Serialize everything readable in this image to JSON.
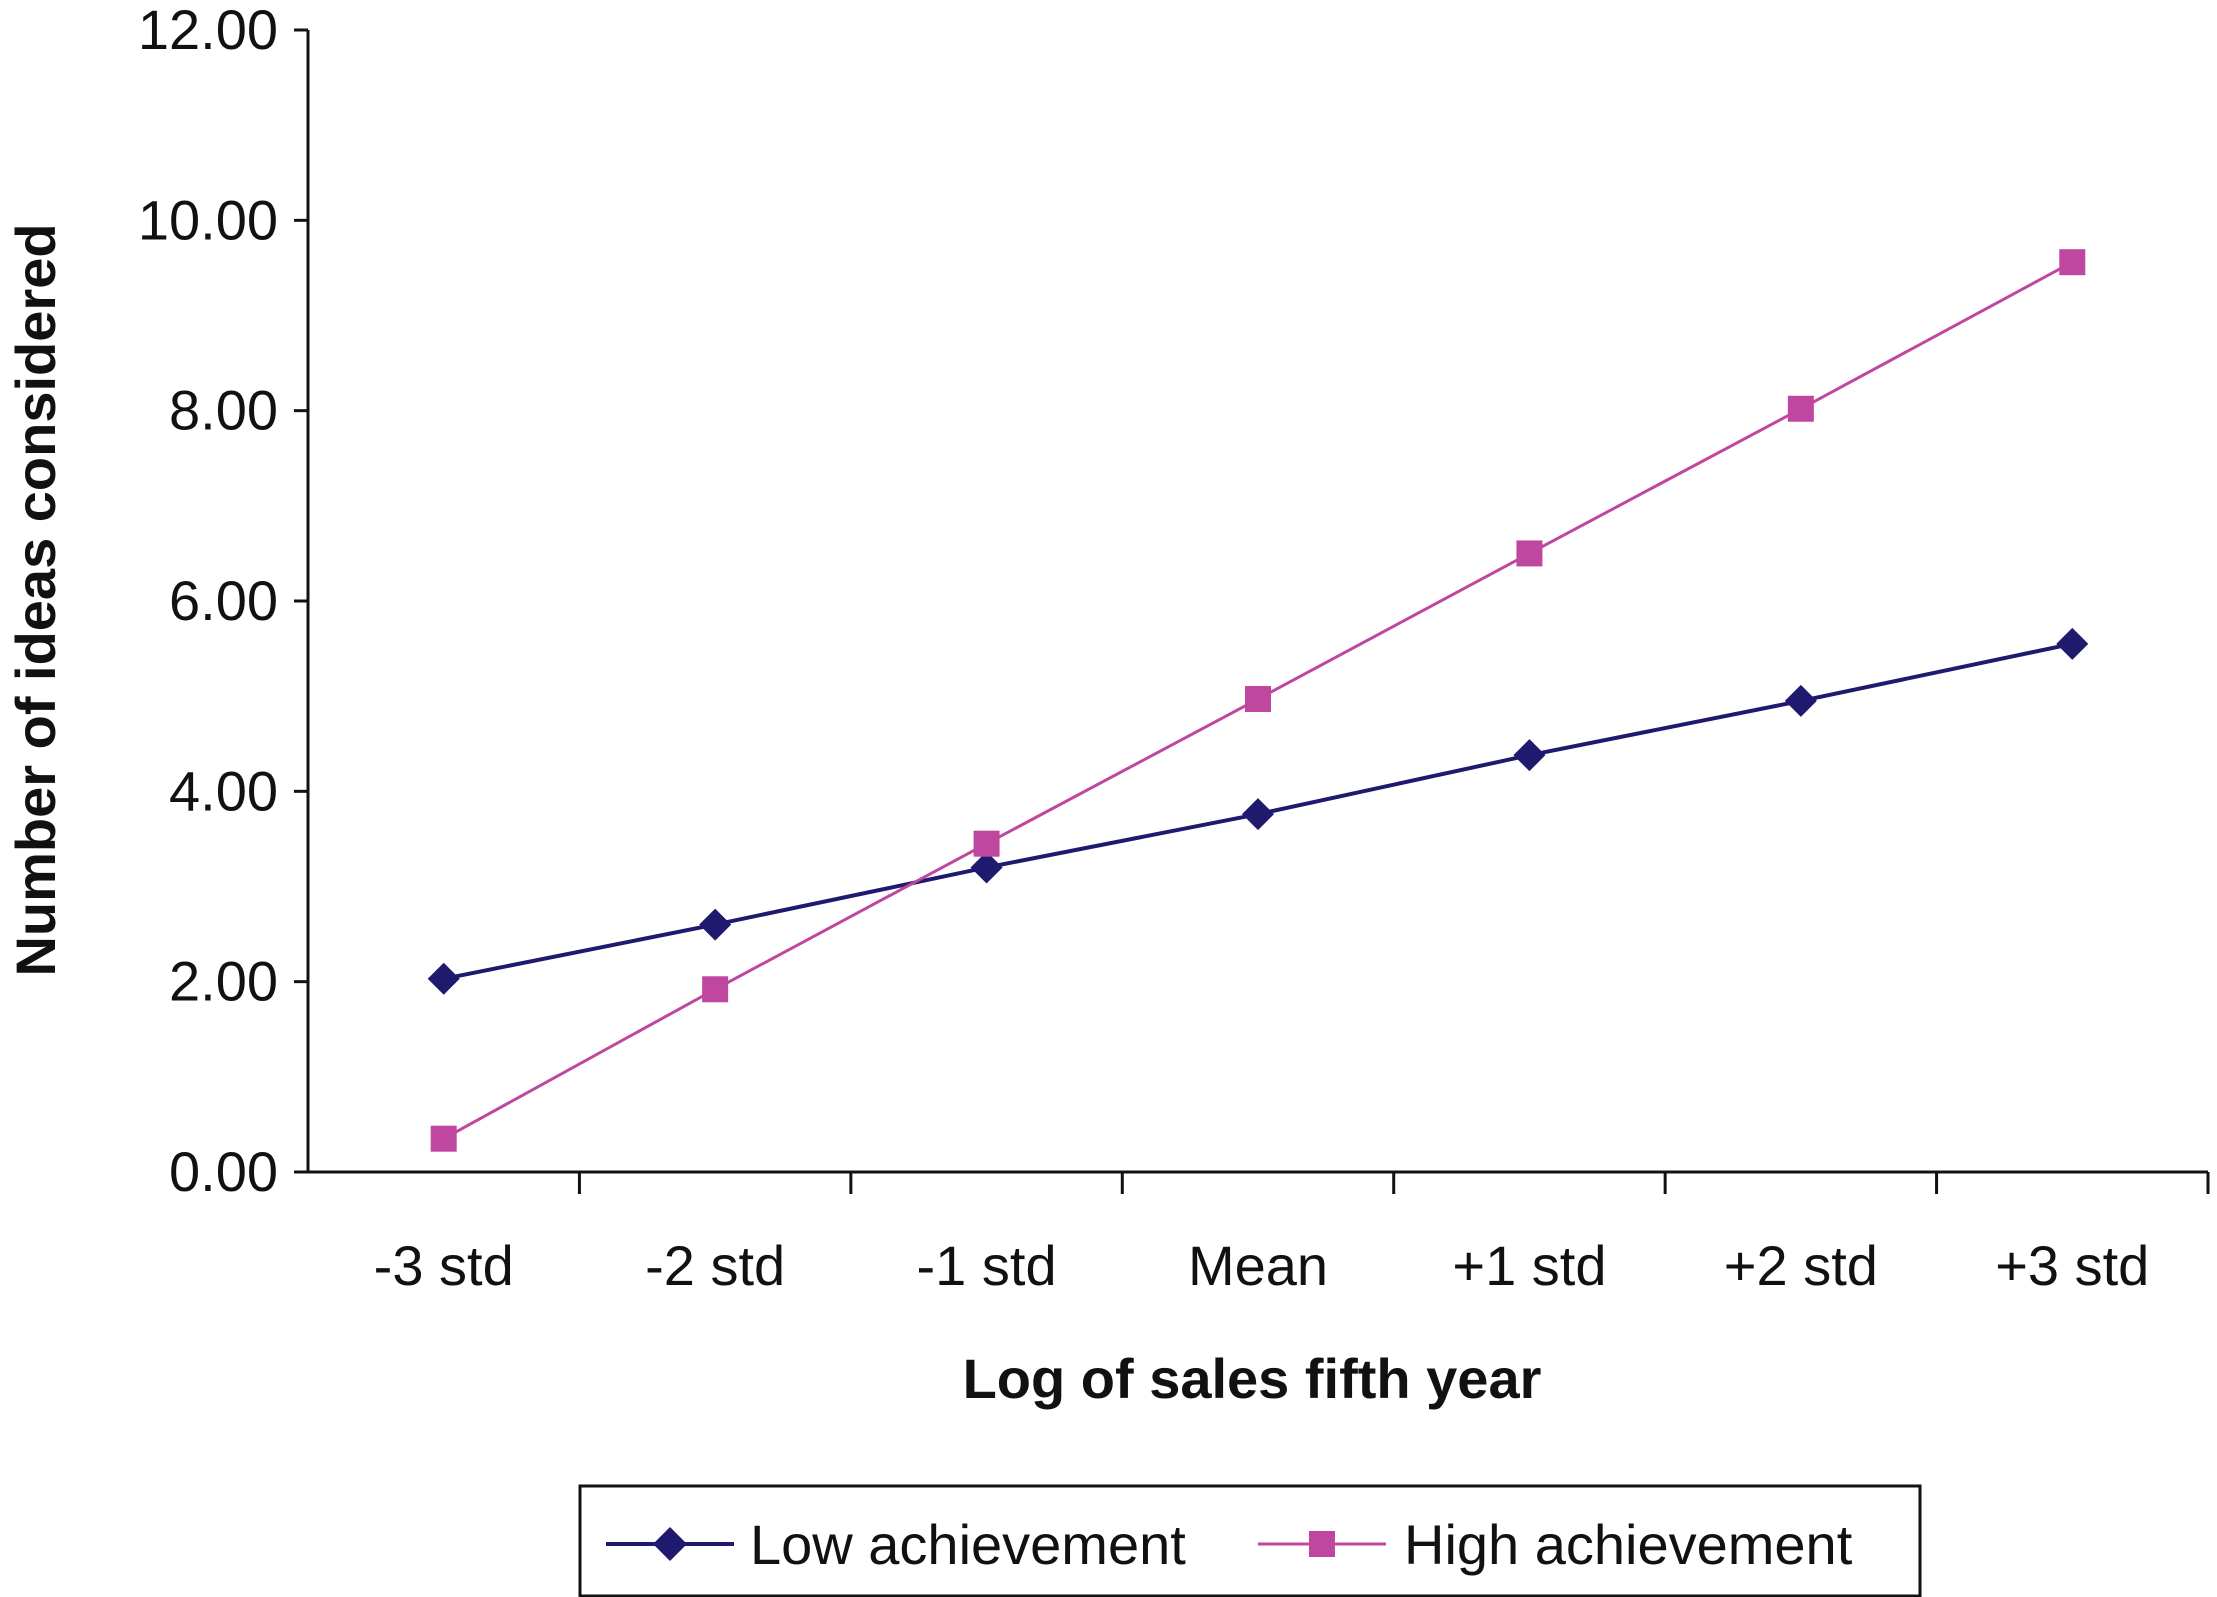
{
  "chart_data": {
    "type": "line",
    "title": "",
    "xlabel": "Log of sales fifth year",
    "ylabel": "Number of ideas considered",
    "categories": [
      "-3 std",
      "-2 std",
      "-1 std",
      "Mean",
      "+1 std",
      "+2 std",
      "+3 std"
    ],
    "yticks": [
      "0.00",
      "2.00",
      "4.00",
      "6.00",
      "8.00",
      "10.00",
      "12.00"
    ],
    "ylim": [
      0,
      12
    ],
    "grid": false,
    "legend_position": "bottom",
    "series": [
      {
        "name": "Low achievement",
        "color": "#1f1a6e",
        "marker": "diamond",
        "values": [
          2.03,
          2.6,
          3.2,
          3.76,
          4.38,
          4.95,
          5.55
        ]
      },
      {
        "name": "High achievement",
        "color": "#c0479f",
        "marker": "square",
        "values": [
          0.35,
          1.92,
          3.45,
          4.97,
          6.5,
          8.02,
          9.56
        ]
      }
    ]
  }
}
